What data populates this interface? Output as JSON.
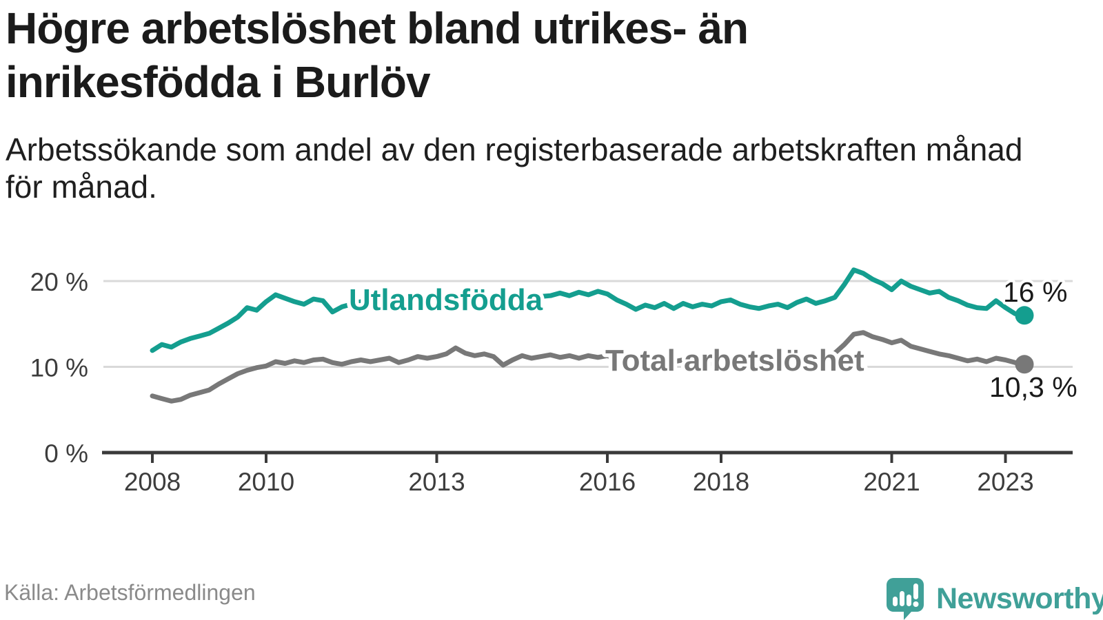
{
  "header": {
    "title_lines": [
      "Högre arbetslöshet bland utrikes- än",
      "inrikesfödda i Burlöv"
    ],
    "subtitle_lines": [
      "Arbetssökande som andel av den registerbaserade arbetskraften månad",
      "för månad."
    ]
  },
  "footer": {
    "source": "Källa: Arbetsförmedlingen",
    "brand": "Newsworthy"
  },
  "colors": {
    "accent_teal": "#149e8f",
    "line_gray": "#787878",
    "brand_teal": "#40a098",
    "grid_gray": "#d9d9d9",
    "axis_dark": "#3a3a3a"
  },
  "chart_data": {
    "type": "line",
    "unit": "%",
    "x_axis": {
      "ticks": [
        2008,
        2010,
        2013,
        2016,
        2018,
        2021,
        2023
      ],
      "tick_labels": [
        "2008",
        "2010",
        "2013",
        "2016",
        "2018",
        "2021",
        "2023"
      ],
      "range": [
        2007.1,
        2024.2
      ]
    },
    "y_axis": {
      "ticks": [
        0,
        10,
        20
      ],
      "tick_labels": [
        "0 %",
        "10 %",
        "20 %"
      ],
      "gridlines": [
        10,
        20
      ],
      "range": [
        0,
        22
      ]
    },
    "legend_position": "inline-labels",
    "series": [
      {
        "id": "utlandsfodda",
        "name": "Utlandsfödda",
        "color": "#149e8f",
        "end_label": "16 %",
        "last_value": 16.0,
        "start": 2008.0,
        "step_years": 0.1666667,
        "values": [
          11.9,
          12.6,
          12.3,
          12.9,
          13.3,
          13.6,
          13.9,
          14.5,
          15.1,
          15.8,
          16.9,
          16.6,
          17.6,
          18.4,
          18.0,
          17.6,
          17.3,
          17.9,
          17.7,
          16.4,
          17.0,
          17.3,
          17.6,
          17.4,
          17.5,
          17.8,
          17.6,
          17.8,
          18.1,
          17.9,
          18.0,
          18.3,
          17.9,
          18.1,
          18.3,
          18.1,
          18.2,
          18.5,
          18.1,
          18.3,
          18.0,
          18.2,
          18.3,
          18.6,
          18.3,
          18.7,
          18.4,
          18.8,
          18.5,
          17.8,
          17.3,
          16.7,
          17.2,
          16.9,
          17.4,
          16.8,
          17.4,
          17.0,
          17.3,
          17.1,
          17.6,
          17.8,
          17.3,
          17.0,
          16.8,
          17.1,
          17.3,
          16.9,
          17.5,
          17.9,
          17.4,
          17.7,
          18.1,
          19.6,
          21.3,
          20.9,
          20.2,
          19.7,
          19.0,
          20.0,
          19.4,
          19.0,
          18.6,
          18.8,
          18.1,
          17.7,
          17.2,
          16.9,
          16.8,
          17.7,
          16.9,
          16.2,
          16.0
        ]
      },
      {
        "id": "total-arbetsloshet",
        "name": "Total arbetslöshet",
        "color": "#787878",
        "end_label": "10,3 %",
        "last_value": 10.3,
        "start": 2008.0,
        "step_years": 0.1666667,
        "values": [
          6.6,
          6.3,
          6.0,
          6.2,
          6.7,
          7.0,
          7.3,
          8.0,
          8.6,
          9.2,
          9.6,
          9.9,
          10.1,
          10.6,
          10.4,
          10.7,
          10.5,
          10.8,
          10.9,
          10.5,
          10.3,
          10.6,
          10.8,
          10.6,
          10.8,
          11.0,
          10.5,
          10.8,
          11.2,
          11.0,
          11.2,
          11.5,
          12.2,
          11.6,
          11.3,
          11.5,
          11.2,
          10.2,
          10.8,
          11.3,
          11.0,
          11.2,
          11.4,
          11.1,
          11.3,
          11.0,
          11.3,
          11.1,
          11.3,
          10.9,
          10.6,
          10.8,
          10.5,
          10.7,
          10.9,
          10.6,
          10.8,
          10.5,
          10.7,
          10.4,
          10.6,
          10.8,
          10.5,
          10.3,
          10.5,
          10.2,
          10.4,
          10.6,
          10.3,
          10.5,
          10.8,
          11.0,
          11.6,
          12.6,
          13.8,
          14.0,
          13.5,
          13.2,
          12.8,
          13.1,
          12.4,
          12.1,
          11.8,
          11.5,
          11.3,
          11.0,
          10.7,
          10.9,
          10.6,
          11.0,
          10.8,
          10.5,
          10.3
        ]
      }
    ]
  }
}
